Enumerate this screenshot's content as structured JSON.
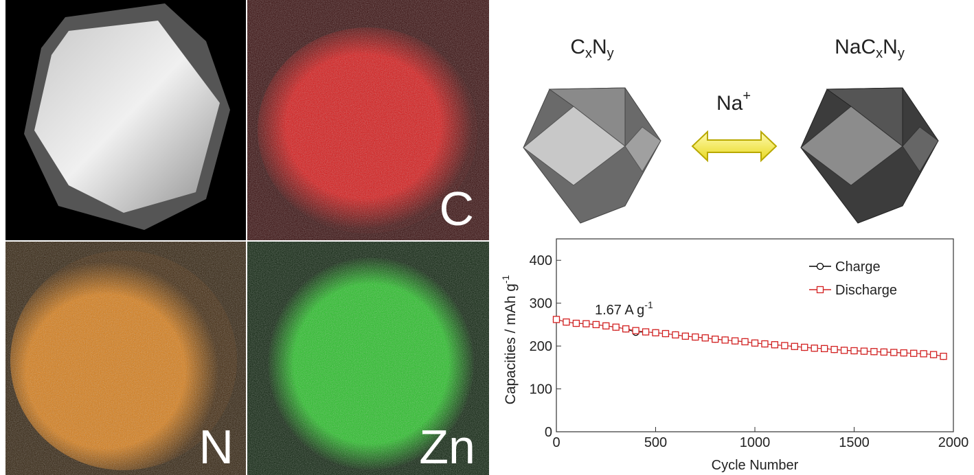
{
  "panels": {
    "carbon": "C",
    "nitrogen": "N",
    "zinc": "Zn"
  },
  "scheme": {
    "left_label": [
      "C",
      "x",
      "N",
      "y"
    ],
    "right_label": [
      "NaC",
      "x",
      "N",
      "y"
    ],
    "ion": [
      "Na",
      "+"
    ]
  },
  "chart_data": {
    "type": "line",
    "annotation": {
      "text": "1.67 A g",
      "sup": "-1"
    },
    "xlabel": "Cycle Number",
    "ylabel": {
      "text": "Capacities / mAh g",
      "sup": "-1"
    },
    "x": [
      0,
      50,
      100,
      150,
      200,
      250,
      300,
      350,
      400,
      450,
      500,
      550,
      600,
      650,
      700,
      750,
      800,
      850,
      900,
      950,
      1000,
      1050,
      1100,
      1150,
      1200,
      1250,
      1300,
      1350,
      1400,
      1450,
      1500,
      1550,
      1600,
      1650,
      1700,
      1750,
      1800,
      1850,
      1900,
      1950
    ],
    "series": [
      {
        "name": "Charge",
        "color": "#000000",
        "marker": "circle",
        "values": [
          262,
          256,
          253,
          252,
          250,
          247,
          244,
          240,
          232,
          233,
          231,
          229,
          226,
          223,
          221,
          219,
          216,
          214,
          212,
          210,
          207,
          205,
          203,
          201,
          199,
          197,
          195,
          194,
          192,
          190,
          189,
          188,
          187,
          186,
          185,
          184,
          183,
          182,
          180,
          176
        ]
      },
      {
        "name": "Discharge",
        "color": "#d42020",
        "marker": "square",
        "values": [
          262,
          256,
          253,
          252,
          250,
          247,
          244,
          240,
          236,
          233,
          231,
          229,
          226,
          223,
          221,
          219,
          216,
          214,
          212,
          210,
          207,
          205,
          203,
          201,
          199,
          197,
          195,
          194,
          192,
          190,
          189,
          188,
          187,
          186,
          185,
          184,
          183,
          182,
          180,
          176
        ]
      }
    ],
    "xlim": [
      0,
      2000
    ],
    "ylim": [
      0,
      450
    ],
    "xticks": [
      0,
      500,
      1000,
      1500,
      2000
    ],
    "yticks": [
      0,
      100,
      200,
      300,
      400
    ]
  }
}
